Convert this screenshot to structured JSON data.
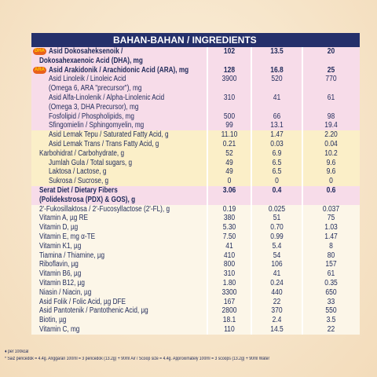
{
  "table": {
    "title": "BAHAN-BAHAN / INGREDIENTS",
    "group_colors": {
      "pink": "#f7dce9",
      "yellow": "#fbefc8",
      "cream": "#fcf6e8"
    },
    "rows": [
      {
        "name": "Asid Dokosaheksenoik /",
        "values": [
          "102",
          "13.5",
          "20"
        ],
        "bold": true,
        "badge": "DHA",
        "group": "pink"
      },
      {
        "name": "Dokosahexaenoic Acid (DHA), mg",
        "bold": true,
        "group": "pink"
      },
      {
        "name": "Asid Arakidonik / Arachidonic Acid (ARA), mg",
        "values": [
          "128",
          "16.8",
          "25"
        ],
        "bold": true,
        "badge": "ARA",
        "group": "pink"
      },
      {
        "name": "Asid Linoleik / Linoleic Acid",
        "values": [
          "3900",
          "520",
          "770"
        ],
        "sub": true,
        "group": "pink"
      },
      {
        "name": "(Omega 6, ARA \"precursor\"), mg",
        "sub": true,
        "group": "pink"
      },
      {
        "name": "Asid Alfa-Linolenik / Alpha-Linolenic Acid",
        "values": [
          "310",
          "41",
          "61"
        ],
        "sub": true,
        "group": "pink"
      },
      {
        "name": "(Omega 3, DHA Precursor), mg",
        "sub": true,
        "group": "pink"
      },
      {
        "name": "Fosfolipid / Phospholipids, mg",
        "values": [
          "500",
          "66",
          "98"
        ],
        "sub": true,
        "group": "pink"
      },
      {
        "name": "Sfingomielin / Sphingomyelin, mg",
        "values": [
          "99",
          "13.1",
          "19.4"
        ],
        "sub": true,
        "group": "pink"
      },
      {
        "name": "Asid Lemak Tepu / Saturated Fatty Acid, g",
        "values": [
          "11.10",
          "1.47",
          "2.20"
        ],
        "sub": true,
        "group": "yellow"
      },
      {
        "name": "Asid Lemak Trans / Trans Fatty Acid, g",
        "values": [
          "0.21",
          "0.03",
          "0.04"
        ],
        "sub": true,
        "group": "yellow"
      },
      {
        "name": "Karbohidrat / Carbohydrate, g",
        "values": [
          "52",
          "6.9",
          "10.2"
        ],
        "group": "yellow"
      },
      {
        "name": "Jumlah Gula / Total sugars, g",
        "values": [
          "49",
          "6.5",
          "9.6"
        ],
        "sub": true,
        "group": "yellow"
      },
      {
        "name": "Laktosa / Lactose, g",
        "values": [
          "49",
          "6.5",
          "9.6"
        ],
        "sub": true,
        "group": "yellow"
      },
      {
        "name": "Sukrosa / Sucrose, g",
        "values": [
          "0",
          "0",
          "0"
        ],
        "sub": true,
        "group": "yellow"
      },
      {
        "name": "Serat Diet / Dietary Fibers",
        "values": [
          "3.06",
          "0.4",
          "0.6"
        ],
        "bold": true,
        "group": "pink"
      },
      {
        "name": "(Polidekstrosa (PDX) & GOS), g",
        "bold": true,
        "group": "pink"
      },
      {
        "name": "2'-Fukosillaktosa / 2'-Fucosyllactose (2'-FL), g",
        "values": [
          "0.19",
          "0.025",
          "0.037"
        ],
        "group": "cream"
      },
      {
        "name": "Vitamin A, µg RE",
        "values": [
          "380",
          "51",
          "75"
        ],
        "group": "cream"
      },
      {
        "name": "Vitamin D, µg",
        "values": [
          "5.30",
          "0.70",
          "1.03"
        ],
        "group": "cream"
      },
      {
        "name": "Vitamin E, mg α-TE",
        "values": [
          "7.50",
          "0.99",
          "1.47"
        ],
        "group": "cream"
      },
      {
        "name": "Vitamin K1, µg",
        "values": [
          "41",
          "5.4",
          "8"
        ],
        "group": "cream"
      },
      {
        "name": "Tiamina / Thiamine, µg",
        "values": [
          "410",
          "54",
          "80"
        ],
        "group": "cream"
      },
      {
        "name": "Riboflavin, µg",
        "values": [
          "800",
          "106",
          "157"
        ],
        "group": "cream"
      },
      {
        "name": "Vitamin B6, µg",
        "values": [
          "310",
          "41",
          "61"
        ],
        "group": "cream"
      },
      {
        "name": "Vitamin B12, µg",
        "values": [
          "1.80",
          "0.24",
          "0.35"
        ],
        "group": "cream"
      },
      {
        "name": "Niasin / Niacin, µg",
        "values": [
          "3300",
          "440",
          "650"
        ],
        "group": "cream"
      },
      {
        "name": "Asid Folik / Folic Acid, µg DFE",
        "values": [
          "167",
          "22",
          "33"
        ],
        "group": "cream"
      },
      {
        "name": "Asid Pantotenik / Pantothenic Acid, µg",
        "values": [
          "2800",
          "370",
          "550"
        ],
        "group": "cream"
      },
      {
        "name": "Biotin, µg",
        "values": [
          "18.1",
          "2.4",
          "3.5"
        ],
        "group": "cream"
      },
      {
        "name": "Vitamin C, mg",
        "values": [
          "110",
          "14.5",
          "22"
        ],
        "group": "cream"
      }
    ]
  },
  "footnotes": [
    "♦ per 100kcal",
    "* Saiz pencedok = 4.4g. Anggaran 100ml = 3 pencedok (13.2g) + 90ml Air / Scoop size = 4.4g. Approximately 100ml = 3 scoops (13.2g) + 90ml Water"
  ]
}
